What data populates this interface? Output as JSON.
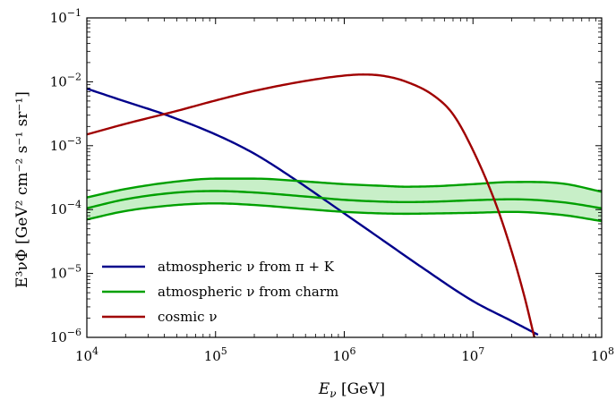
{
  "chart_data": {
    "type": "line",
    "xlabel_text": "E",
    "xlabel_sub": "ν",
    "xlabel_unit": " [GeV]",
    "ylabel_text": "E³νΦ [GeV² cm⁻² s⁻¹ sr⁻¹]",
    "x_scale": "log",
    "y_scale": "log",
    "xlim": [
      10000,
      100000000
    ],
    "ylim": [
      1e-06,
      0.1
    ],
    "grid": false,
    "legend_placement": "lower-left",
    "x_ticks": [
      {
        "value": 10000,
        "base": "10",
        "exp": "4"
      },
      {
        "value": 100000,
        "base": "10",
        "exp": "5"
      },
      {
        "value": 1000000,
        "base": "10",
        "exp": "6"
      },
      {
        "value": 10000000,
        "base": "10",
        "exp": "7"
      },
      {
        "value": 100000000,
        "base": "10",
        "exp": "8"
      }
    ],
    "y_ticks": [
      {
        "value": 1e-06,
        "base": "10",
        "exp": "−6"
      },
      {
        "value": 1e-05,
        "base": "10",
        "exp": "−5"
      },
      {
        "value": 0.0001,
        "base": "10",
        "exp": "−4"
      },
      {
        "value": 0.001,
        "base": "10",
        "exp": "−3"
      },
      {
        "value": 0.01,
        "base": "10",
        "exp": "−2"
      },
      {
        "value": 0.1,
        "base": "10",
        "exp": "−1"
      }
    ],
    "series": [
      {
        "name": "atmospheric ν from π + K",
        "color": "#00008b",
        "x": [
          10000,
          20000,
          40000,
          100000,
          200000,
          400000,
          1000000,
          2000000,
          4000000,
          10000000,
          20000000,
          32000000
        ],
        "y": [
          0.0078,
          0.0049,
          0.0031,
          0.0015,
          0.00075,
          0.00031,
          8.7e-05,
          3.3e-05,
          1.25e-05,
          3.7e-06,
          1.8e-06,
          1.1e-06
        ]
      },
      {
        "name": "atmospheric ν from charm",
        "color": "#00a000",
        "band_fill": "#c8efc8",
        "x": [
          10000,
          20000,
          50000,
          100000,
          200000,
          500000,
          1000000,
          2000000,
          3000000,
          5000000,
          10000000,
          20000000,
          50000000,
          100000000
        ],
        "upper": [
          0.000155,
          0.00021,
          0.000275,
          0.000305,
          0.000305,
          0.000275,
          0.00025,
          0.000235,
          0.000228,
          0.000232,
          0.00025,
          0.00027,
          0.000255,
          0.00019
        ],
        "middle": [
          0.000105,
          0.000145,
          0.000185,
          0.000195,
          0.000185,
          0.00016,
          0.000142,
          0.000133,
          0.000131,
          0.000133,
          0.00014,
          0.000145,
          0.00013,
          0.000105
        ],
        "lower": [
          7e-05,
          9.5e-05,
          0.000118,
          0.000125,
          0.000118,
          0.000102,
          9.2e-05,
          8.7e-05,
          8.6e-05,
          8.7e-05,
          8.9e-05,
          9.2e-05,
          8.2e-05,
          6.6e-05
        ]
      },
      {
        "name": "cosmic ν",
        "color": "#a00000",
        "x": [
          10000,
          20000,
          50000,
          100000,
          200000,
          500000,
          1000000,
          1400000,
          2000000,
          3000000,
          5000000,
          7000000,
          10000000,
          15000000,
          20000000,
          25000000,
          30000000
        ],
        "y": [
          0.0015,
          0.0022,
          0.0035,
          0.0051,
          0.0072,
          0.0103,
          0.0125,
          0.013,
          0.0124,
          0.0101,
          0.006,
          0.0031,
          0.00085,
          0.000125,
          2.2e-05,
          4.5e-06,
          1e-06
        ]
      }
    ]
  }
}
